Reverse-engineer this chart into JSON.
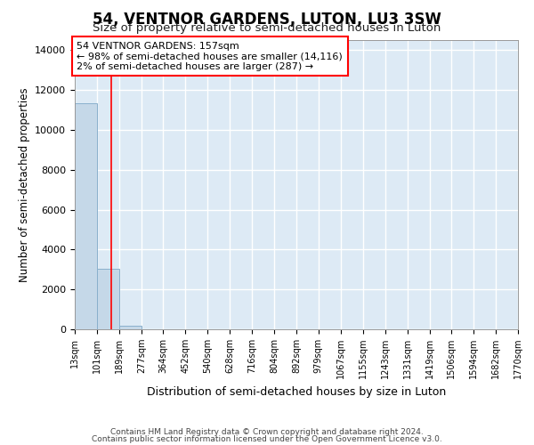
{
  "title_line1": "54, VENTNOR GARDENS, LUTON, LU3 3SW",
  "title_line2": "Size of property relative to semi-detached houses in Luton",
  "xlabel": "Distribution of semi-detached houses by size in Luton",
  "ylabel": "Number of semi-detached properties",
  "annotation_line1": "54 VENTNOR GARDENS: 157sqm",
  "annotation_line2": "← 98% of semi-detached houses are smaller (14,116)",
  "annotation_line3": "2% of semi-detached houses are larger (287) →",
  "property_size_sqm": 157,
  "bin_edges": [
    13,
    101,
    189,
    277,
    364,
    452,
    540,
    628,
    716,
    804,
    892,
    979,
    1067,
    1155,
    1243,
    1331,
    1419,
    1506,
    1594,
    1682,
    1770
  ],
  "bin_labels": [
    "13sqm",
    "101sqm",
    "189sqm",
    "277sqm",
    "364sqm",
    "452sqm",
    "540sqm",
    "628sqm",
    "716sqm",
    "804sqm",
    "892sqm",
    "979sqm",
    "1067sqm",
    "1155sqm",
    "1243sqm",
    "1331sqm",
    "1419sqm",
    "1506sqm",
    "1594sqm",
    "1682sqm",
    "1770sqm"
  ],
  "bar_values": [
    11350,
    3050,
    200,
    0,
    0,
    0,
    0,
    0,
    0,
    0,
    0,
    0,
    0,
    0,
    0,
    0,
    0,
    0,
    0,
    0
  ],
  "bar_color": "#c5d8e8",
  "bar_edge_color": "#8ab0cc",
  "red_line_x": 157,
  "ylim": [
    0,
    14500
  ],
  "yticks": [
    0,
    2000,
    4000,
    6000,
    8000,
    10000,
    12000,
    14000
  ],
  "background_color": "#ddeaf5",
  "grid_color": "#ffffff",
  "footer_line1": "Contains HM Land Registry data © Crown copyright and database right 2024.",
  "footer_line2": "Contains public sector information licensed under the Open Government Licence v3.0."
}
